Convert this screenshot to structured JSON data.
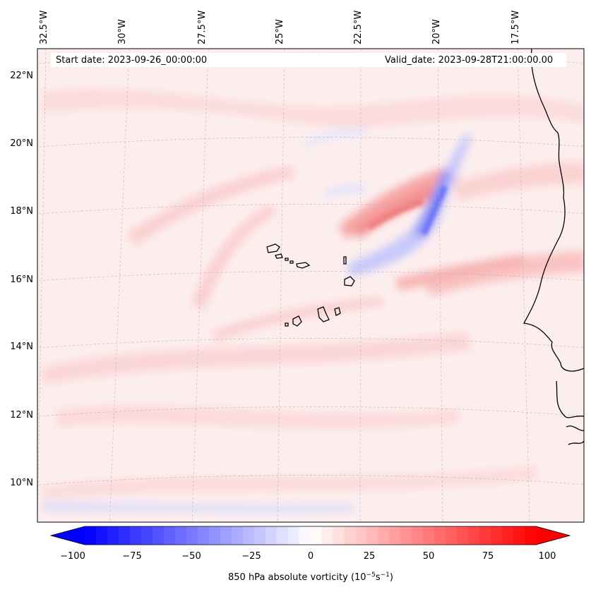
{
  "header": {
    "start_date": "Start date: 2023-09-26_00:00:00",
    "valid_date": "Valid_date: 2023-09-28T21:00:00.00"
  },
  "map": {
    "projection": "Lambert conformal (tilted graticule)",
    "longitude_labels": [
      "32.5°W",
      "30°W",
      "27.5°W",
      "25°W",
      "22.5°W",
      "20°W",
      "17.5°W"
    ],
    "latitude_labels": [
      "22°N",
      "20°N",
      "18°N",
      "16°N",
      "14°N",
      "12°N",
      "10°N"
    ],
    "gridlines": true,
    "coastline_color": "#000000"
  },
  "colorbar": {
    "label_text": "850 hPa absolute vorticity (10",
    "label_exp1": "−5",
    "label_mid": "s",
    "label_exp2": "−1",
    "label_close": ")",
    "ticks": [
      "−100",
      "−75",
      "−50",
      "−25",
      "0",
      "25",
      "50",
      "75",
      "100"
    ],
    "min": -100,
    "max": 100,
    "step": 5,
    "cmap": "bwr",
    "extend": "both",
    "colors": {
      "low": "#0000ff",
      "mid": "#ffffff",
      "high": "#ff0000"
    }
  }
}
